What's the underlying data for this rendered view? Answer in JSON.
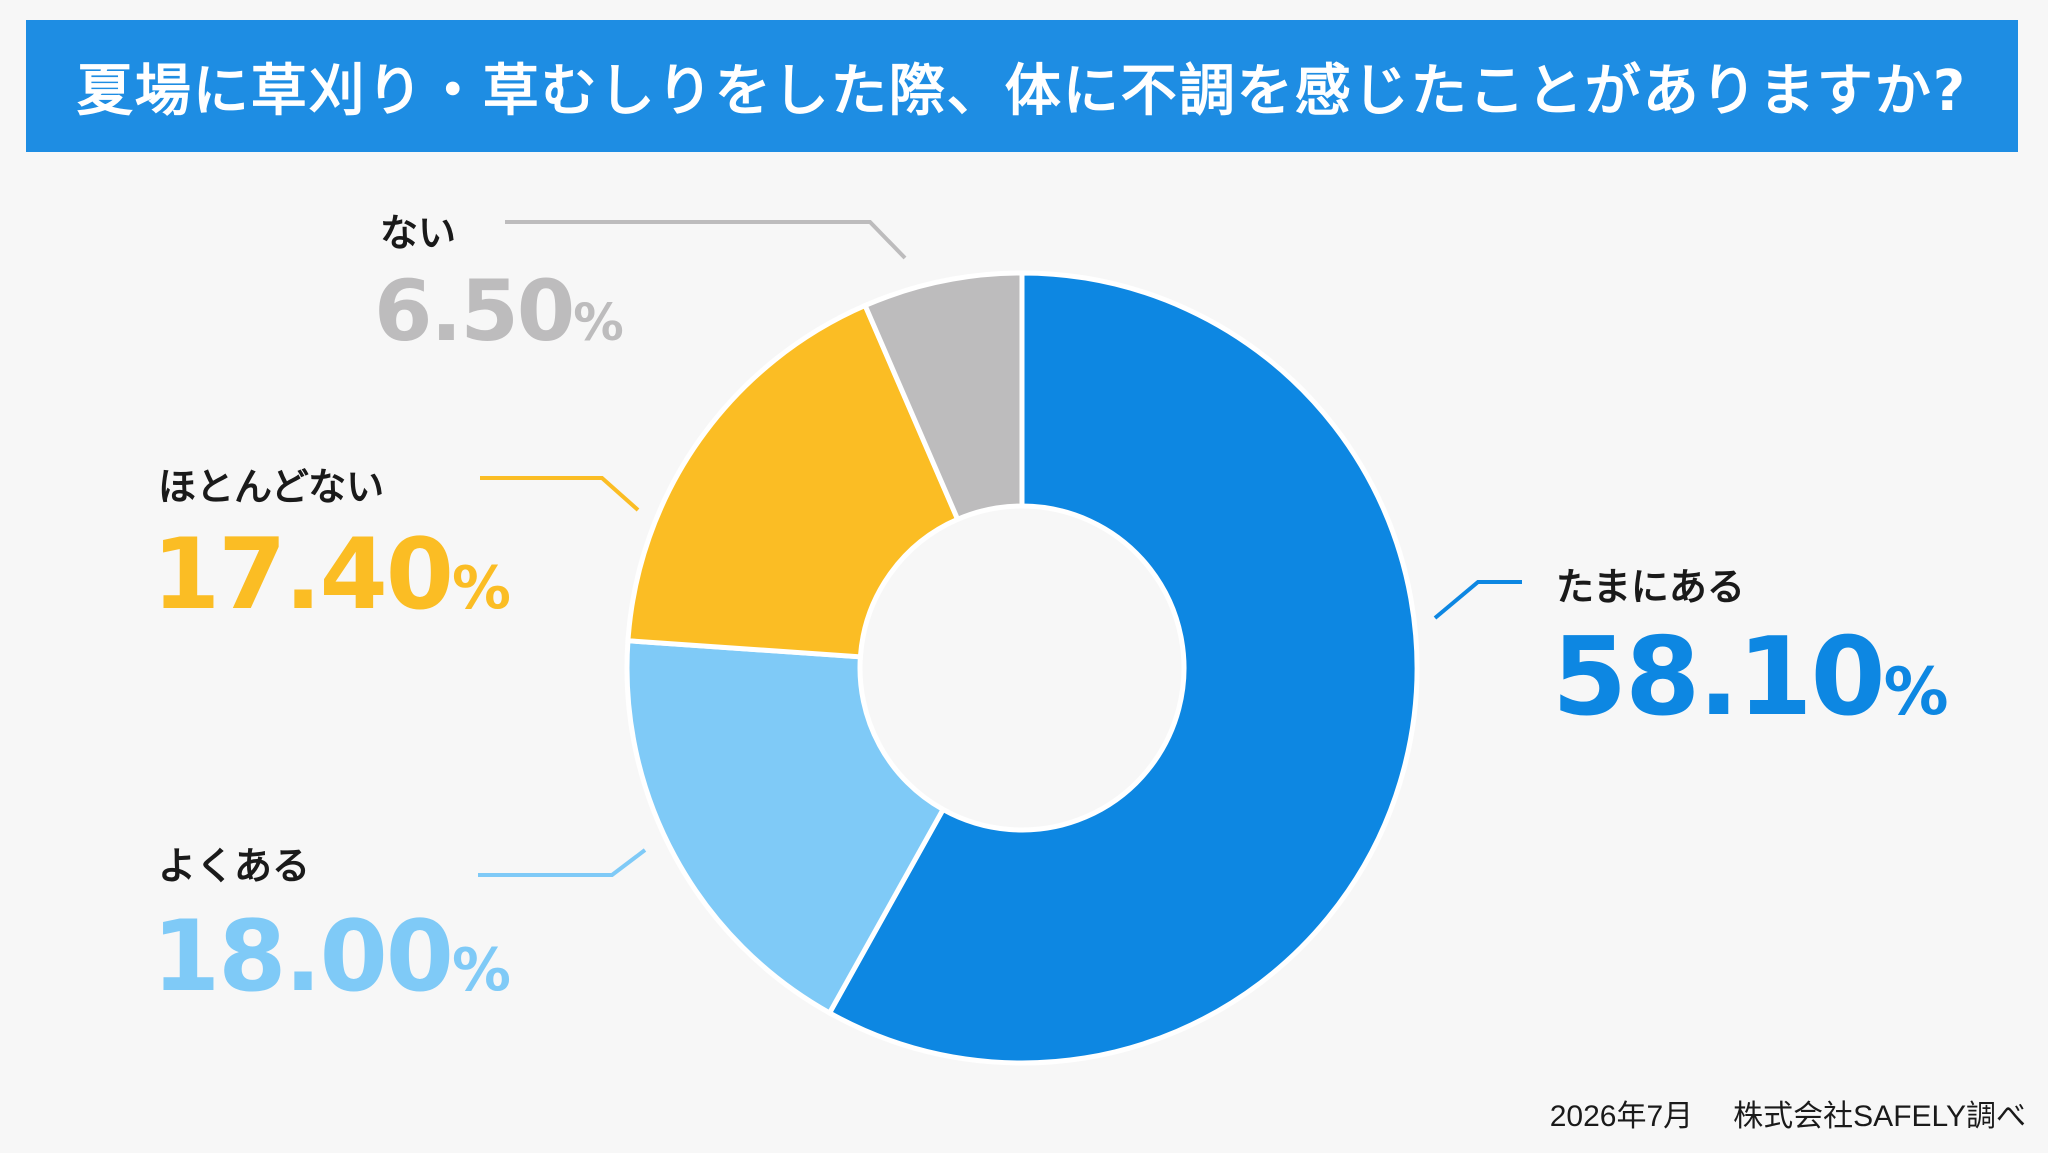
{
  "title": "夏場に草刈り・草むしりをした際、体に不調を感じたことがありますか?",
  "chart_data": {
    "type": "pie",
    "title": "夏場に草刈り・草むしりをした際、体に不調を感じたことがありますか?",
    "slices": [
      {
        "label": "たまにある",
        "value": 58.1,
        "value_label": "58.10",
        "color": "#0d87e2"
      },
      {
        "label": "よくある",
        "value": 18.0,
        "value_label": "18.00",
        "color": "#7fcaf7"
      },
      {
        "label": "ほとんどない",
        "value": 17.4,
        "value_label": "17.40",
        "color": "#fbbd24"
      },
      {
        "label": "ない",
        "value": 6.5,
        "value_label": "6.50",
        "color": "#bdbcbd"
      }
    ],
    "unit": "%",
    "donut": true,
    "start_angle_deg": 0,
    "direction": "clockwise"
  },
  "footer": {
    "date": "2026年7月",
    "source": "株式会社SAFELY調べ"
  }
}
